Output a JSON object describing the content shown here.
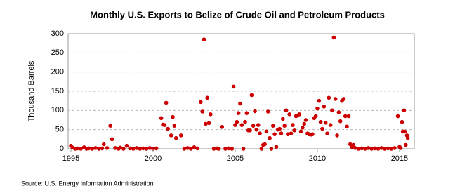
{
  "chart_data": {
    "type": "scatter",
    "title": "Monthly U.S. Exports to Belize of Crude Oil and Petroleum Products",
    "y_label": "Thousand Barrels",
    "source": "Source: U.S. Energy Information Administration",
    "xlim": [
      1994.83,
      2015.9
    ],
    "xticks": [
      1995,
      2000,
      2005,
      2010,
      2015
    ],
    "ylim": [
      0,
      300
    ],
    "yticks": [
      0,
      50,
      100,
      150,
      200,
      250,
      300
    ],
    "grid": true,
    "color": "#cc0000",
    "x": [
      1995.0,
      1995.1,
      1995.25,
      1995.4,
      1995.6,
      1995.8,
      1995.95,
      1996.1,
      1996.3,
      1996.5,
      1996.7,
      1996.9,
      1997.0,
      1997.2,
      1997.4,
      1997.5,
      1997.7,
      1997.9,
      1998.0,
      1998.2,
      1998.4,
      1998.6,
      1998.8,
      1999.0,
      1999.2,
      1999.4,
      1999.6,
      1999.8,
      2000.0,
      2000.2,
      2000.5,
      2000.6,
      2000.7,
      2000.8,
      2000.9,
      2001.1,
      2001.2,
      2001.3,
      2001.4,
      2001.7,
      2001.9,
      2002.1,
      2002.3,
      2002.5,
      2002.7,
      2002.9,
      2003.0,
      2003.1,
      2003.2,
      2003.3,
      2003.4,
      2003.5,
      2003.7,
      2003.9,
      2004.0,
      2004.2,
      2004.4,
      2004.6,
      2004.8,
      2004.9,
      2005.0,
      2005.1,
      2005.2,
      2005.3,
      2005.4,
      2005.5,
      2005.6,
      2005.7,
      2005.8,
      2005.9,
      2006.0,
      2006.1,
      2006.2,
      2006.3,
      2006.4,
      2006.5,
      2006.6,
      2006.7,
      2006.8,
      2006.9,
      2007.0,
      2007.1,
      2007.2,
      2007.3,
      2007.4,
      2007.5,
      2007.6,
      2007.7,
      2007.8,
      2007.9,
      2008.0,
      2008.1,
      2008.2,
      2008.3,
      2008.4,
      2008.5,
      2008.6,
      2008.7,
      2008.8,
      2008.9,
      2009.0,
      2009.1,
      2009.2,
      2009.3,
      2009.4,
      2009.5,
      2009.6,
      2009.7,
      2009.8,
      2009.9,
      2010.0,
      2010.1,
      2010.2,
      2010.3,
      2010.4,
      2010.5,
      2010.6,
      2010.7,
      2010.8,
      2010.9,
      2011.0,
      2011.1,
      2011.2,
      2011.3,
      2011.4,
      2011.5,
      2011.6,
      2011.7,
      2011.8,
      2011.9,
      2012.0,
      2012.1,
      2012.2,
      2012.3,
      2012.5,
      2012.7,
      2012.9,
      2013.1,
      2013.3,
      2013.5,
      2013.7,
      2013.9,
      2014.1,
      2014.3,
      2014.5,
      2014.7,
      2014.9,
      2015.0,
      2015.07,
      2015.15,
      2015.2,
      2015.27,
      2015.32,
      2015.38,
      2015.45,
      2015.5
    ],
    "values": [
      8,
      3,
      0,
      1,
      0,
      4,
      0,
      1,
      0,
      2,
      0,
      1,
      12,
      2,
      60,
      25,
      2,
      0,
      3,
      0,
      8,
      1,
      0,
      2,
      0,
      1,
      0,
      2,
      0,
      1,
      80,
      63,
      62,
      120,
      52,
      35,
      83,
      60,
      28,
      35,
      0,
      2,
      0,
      4,
      1,
      122,
      97,
      285,
      65,
      133,
      67,
      90,
      0,
      1,
      0,
      57,
      0,
      1,
      0,
      162,
      62,
      70,
      93,
      118,
      62,
      0,
      70,
      93,
      48,
      48,
      140,
      60,
      98,
      50,
      62,
      40,
      0,
      10,
      12,
      45,
      97,
      28,
      0,
      60,
      38,
      5,
      50,
      52,
      40,
      78,
      60,
      100,
      38,
      90,
      40,
      62,
      48,
      85,
      87,
      90,
      45,
      55,
      65,
      75,
      40,
      38,
      37,
      38,
      80,
      85,
      105,
      125,
      70,
      52,
      110,
      68,
      40,
      133,
      62,
      100,
      290,
      130,
      35,
      95,
      72,
      125,
      130,
      85,
      58,
      85,
      12,
      5,
      10,
      2,
      0,
      1,
      0,
      2,
      0,
      1,
      0,
      2,
      0,
      1,
      0,
      2,
      85,
      5,
      2,
      70,
      45,
      100,
      45,
      10,
      35,
      28
    ]
  }
}
